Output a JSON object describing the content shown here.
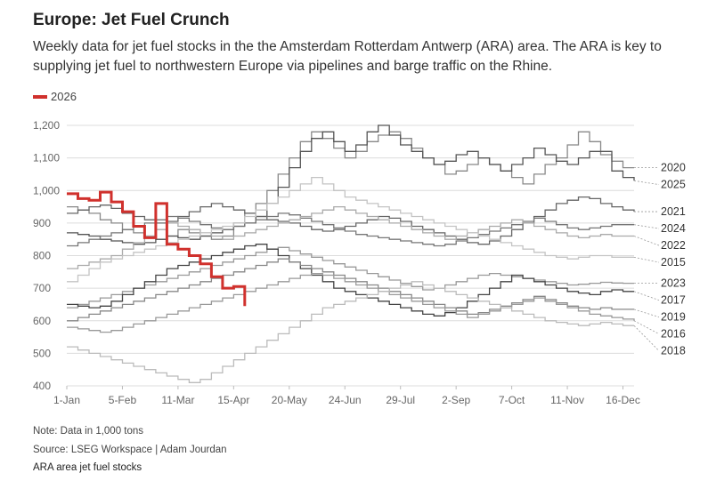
{
  "header": {
    "title": "Europe: Jet Fuel Crunch",
    "subtitle": "Weekly data for jet fuel stocks in the the Amsterdam Rotterdam Antwerp (ARA) area. The ARA is key to supplying jet fuel to northwestern Europe via pipelines and barge traffic on the Rhine."
  },
  "legend": {
    "label": "2026",
    "color": "#d0312d"
  },
  "footer": {
    "note": "Note: Data in 1,000 tons",
    "source": "Source: LSEG Workspace | Adam Jourdan",
    "caption": "ARA area jet fuel stocks"
  },
  "chart_data": {
    "type": "line",
    "title": "Europe: Jet Fuel Crunch",
    "ylabel": "1,000 tons",
    "ylim": [
      400,
      1200
    ],
    "yticks": [
      400,
      500,
      600,
      700,
      800,
      900,
      1000,
      1100,
      1200
    ],
    "ytick_labels": [
      "400",
      "500",
      "600",
      "700",
      "800",
      "900",
      "1,000",
      "1,100",
      "1,200"
    ],
    "xlim": [
      1,
      52
    ],
    "xticks": [
      1,
      6,
      11,
      16,
      21,
      26,
      31,
      36,
      41,
      46,
      51
    ],
    "xtick_labels": [
      "1-Jan",
      "5-Feb",
      "11-Mar",
      "15-Apr",
      "20-May",
      "24-Jun",
      "29-Jul",
      "2-Sep",
      "7-Oct",
      "11-Nov",
      "16-Dec"
    ],
    "highlight": {
      "name": "2026",
      "color": "#d0312d",
      "values": [
        990,
        975,
        970,
        995,
        965,
        935,
        890,
        855,
        960,
        835,
        820,
        800,
        775,
        735,
        700,
        705,
        645
      ]
    },
    "series": [
      {
        "name": "2020",
        "label_value": 1070,
        "color": "#888888",
        "values": [
          950,
          940,
          930,
          910,
          900,
          880,
          870,
          860,
          850,
          860,
          880,
          870,
          860,
          850,
          860,
          900,
          930,
          960,
          1000,
          1050,
          1100,
          1150,
          1180,
          1160,
          1130,
          1100,
          1120,
          1150,
          1170,
          1180,
          1160,
          1130,
          1100,
          1080,
          1050,
          1060,
          1080,
          1100,
          1080,
          1060,
          1040,
          1020,
          1050,
          1080,
          1100,
          1140,
          1180,
          1150,
          1110,
          1090,
          1070,
          1070
        ]
      },
      {
        "name": "2025",
        "label_value": 1030,
        "color": "#555555",
        "values": [
          870,
          865,
          860,
          850,
          845,
          840,
          835,
          840,
          850,
          860,
          855,
          850,
          860,
          870,
          880,
          890,
          900,
          920,
          960,
          1010,
          1070,
          1120,
          1160,
          1180,
          1150,
          1120,
          1140,
          1180,
          1200,
          1170,
          1140,
          1120,
          1100,
          1080,
          1090,
          1110,
          1120,
          1100,
          1080,
          1060,
          1080,
          1100,
          1130,
          1110,
          1090,
          1080,
          1100,
          1120,
          1120,
          1060,
          1040,
          1030
        ]
      },
      {
        "name": "2021",
        "label_value": 935,
        "color": "#666666",
        "values": [
          930,
          940,
          950,
          955,
          945,
          930,
          920,
          910,
          900,
          905,
          920,
          935,
          950,
          960,
          950,
          940,
          930,
          920,
          910,
          905,
          900,
          890,
          880,
          875,
          880,
          890,
          900,
          910,
          920,
          915,
          905,
          890,
          880,
          870,
          860,
          850,
          840,
          835,
          845,
          860,
          880,
          900,
          920,
          940,
          960,
          970,
          980,
          975,
          960,
          950,
          940,
          935
        ]
      },
      {
        "name": "2024",
        "label_value": 895,
        "color": "#777777",
        "values": [
          830,
          840,
          850,
          860,
          870,
          880,
          890,
          900,
          910,
          920,
          915,
          905,
          895,
          885,
          880,
          890,
          900,
          910,
          920,
          930,
          925,
          915,
          905,
          895,
          885,
          875,
          865,
          860,
          855,
          850,
          845,
          840,
          835,
          830,
          835,
          845,
          855,
          865,
          875,
          885,
          895,
          905,
          915,
          905,
          895,
          885,
          880,
          885,
          890,
          895,
          895,
          895
        ]
      },
      {
        "name": "2022",
        "label_value": 860,
        "color": "#aaaaaa",
        "values": [
          760,
          770,
          780,
          790,
          800,
          820,
          840,
          860,
          880,
          900,
          890,
          880,
          870,
          860,
          850,
          860,
          870,
          880,
          890,
          900,
          910,
          920,
          930,
          940,
          950,
          940,
          930,
          920,
          910,
          900,
          890,
          880,
          870,
          860,
          850,
          860,
          870,
          880,
          890,
          900,
          910,
          900,
          890,
          880,
          870,
          860,
          855,
          860,
          865,
          860,
          860,
          860
        ]
      },
      {
        "name": "2015",
        "label_value": 795,
        "color": "#c4c4c4",
        "values": [
          720,
          740,
          760,
          780,
          790,
          800,
          810,
          820,
          830,
          840,
          850,
          860,
          870,
          880,
          890,
          900,
          920,
          940,
          960,
          980,
          1000,
          1020,
          1040,
          1020,
          1000,
          980,
          970,
          960,
          950,
          940,
          930,
          920,
          910,
          900,
          890,
          880,
          870,
          860,
          850,
          840,
          830,
          820,
          810,
          800,
          795,
          790,
          795,
          800,
          800,
          795,
          795,
          795
        ]
      },
      {
        "name": "2023",
        "label_value": 715,
        "color": "#999999",
        "values": [
          640,
          650,
          660,
          670,
          680,
          690,
          700,
          710,
          720,
          730,
          740,
          750,
          760,
          770,
          780,
          790,
          800,
          810,
          820,
          825,
          815,
          805,
          795,
          785,
          775,
          765,
          755,
          745,
          735,
          725,
          715,
          705,
          695,
          700,
          710,
          720,
          730,
          740,
          745,
          740,
          735,
          730,
          725,
          720,
          715,
          710,
          712,
          715,
          718,
          716,
          715,
          715
        ]
      },
      {
        "name": "2017",
        "label_value": 690,
        "color": "#444444",
        "values": [
          650,
          645,
          640,
          645,
          660,
          680,
          700,
          720,
          740,
          760,
          770,
          780,
          790,
          800,
          810,
          820,
          830,
          835,
          820,
          800,
          780,
          760,
          740,
          720,
          700,
          690,
          680,
          670,
          660,
          650,
          640,
          630,
          620,
          615,
          625,
          640,
          660,
          680,
          700,
          720,
          740,
          730,
          720,
          710,
          700,
          690,
          685,
          680,
          690,
          695,
          690,
          690
        ]
      },
      {
        "name": "2019",
        "label_value": 635,
        "color": "#888888",
        "values": [
          600,
          610,
          620,
          630,
          640,
          650,
          660,
          670,
          680,
          690,
          700,
          710,
          720,
          730,
          740,
          750,
          760,
          770,
          780,
          790,
          780,
          770,
          760,
          750,
          740,
          730,
          720,
          710,
          700,
          690,
          680,
          670,
          660,
          650,
          640,
          630,
          620,
          625,
          635,
          645,
          655,
          665,
          675,
          665,
          655,
          645,
          640,
          635,
          640,
          635,
          635,
          635
        ]
      },
      {
        "name": "2016",
        "label_value": 600,
        "color": "#999999",
        "values": [
          580,
          575,
          570,
          565,
          570,
          580,
          590,
          600,
          610,
          620,
          630,
          640,
          650,
          660,
          670,
          680,
          690,
          700,
          710,
          720,
          730,
          740,
          745,
          740,
          730,
          720,
          710,
          700,
          690,
          680,
          670,
          660,
          650,
          640,
          630,
          620,
          610,
          620,
          630,
          640,
          650,
          660,
          670,
          660,
          650,
          640,
          630,
          620,
          615,
          610,
          605,
          600
        ]
      },
      {
        "name": "2018",
        "label_value": 585,
        "color": "#bbbbbb",
        "values": [
          520,
          510,
          500,
          490,
          480,
          470,
          460,
          450,
          440,
          430,
          420,
          410,
          420,
          440,
          460,
          480,
          500,
          520,
          540,
          560,
          580,
          600,
          620,
          640,
          650,
          660,
          670,
          680,
          690,
          700,
          710,
          720,
          710,
          700,
          690,
          680,
          670,
          660,
          650,
          640,
          630,
          620,
          610,
          600,
          595,
          590,
          585,
          590,
          595,
          590,
          585,
          585
        ]
      }
    ]
  }
}
